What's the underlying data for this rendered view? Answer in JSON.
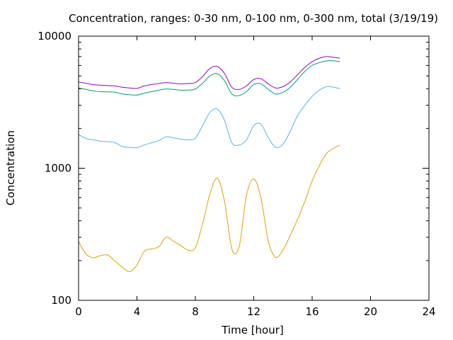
{
  "chart_data": {
    "type": "line",
    "title": "Concentration, ranges: 0-30 nm, 0-100 nm, 0-300 nm, total (3/19/19)",
    "xlabel": "Time [hour]",
    "ylabel": "Concentration",
    "xlim": [
      0,
      24
    ],
    "ylim": [
      100,
      10000
    ],
    "yscale": "log",
    "x_ticks": [
      "0",
      "4",
      "8",
      "12",
      "16",
      "20",
      "24"
    ],
    "y_ticks": [
      "100",
      "1000",
      "10000"
    ],
    "grid": false,
    "legend": "none",
    "series": [
      {
        "color": "#e69f00",
        "x": [
          0,
          0.5,
          1,
          1.5,
          2,
          2.5,
          3,
          3.5,
          4,
          4.5,
          5,
          5.5,
          6,
          6.5,
          7,
          7.5,
          8,
          8.5,
          9,
          9.5,
          10,
          10.5,
          11,
          11.5,
          12,
          12.5,
          13,
          13.5,
          14,
          14.5,
          15,
          15.5,
          16,
          16.5,
          17,
          17.5,
          17.9
        ],
        "y": [
          280,
          225,
          210,
          218,
          220,
          198,
          178,
          165,
          185,
          235,
          245,
          255,
          300,
          280,
          260,
          240,
          250,
          380,
          640,
          840,
          560,
          245,
          255,
          620,
          830,
          590,
          280,
          212,
          240,
          310,
          410,
          560,
          800,
          1050,
          1300,
          1420,
          1500
        ]
      },
      {
        "color": "#56b4e9",
        "x": [
          0,
          0.5,
          1,
          1.5,
          2,
          2.5,
          3,
          3.5,
          4,
          4.5,
          5,
          5.5,
          6,
          6.5,
          7,
          7.5,
          8,
          8.5,
          9,
          9.5,
          10,
          10.5,
          11,
          11.5,
          12,
          12.5,
          13,
          13.5,
          14,
          14.5,
          15,
          15.5,
          16,
          16.5,
          17,
          17.5,
          17.9
        ],
        "y": [
          1800,
          1680,
          1640,
          1600,
          1590,
          1560,
          1460,
          1440,
          1430,
          1500,
          1560,
          1620,
          1730,
          1700,
          1660,
          1640,
          1690,
          2100,
          2650,
          2800,
          2300,
          1560,
          1500,
          1640,
          2100,
          2150,
          1700,
          1440,
          1520,
          1900,
          2500,
          3000,
          3500,
          3900,
          4150,
          4100,
          4000
        ]
      },
      {
        "color": "#009e73",
        "x": [
          0,
          0.5,
          1,
          1.5,
          2,
          2.5,
          3,
          3.5,
          4,
          4.5,
          5,
          5.5,
          6,
          6.5,
          7,
          7.5,
          8,
          8.5,
          9,
          9.5,
          10,
          10.5,
          11,
          11.5,
          12,
          12.5,
          13,
          13.5,
          14,
          14.5,
          15,
          15.5,
          16,
          16.5,
          17,
          17.5,
          17.9
        ],
        "y": [
          4050,
          3950,
          3850,
          3800,
          3780,
          3760,
          3650,
          3600,
          3580,
          3700,
          3800,
          3900,
          3980,
          3950,
          3900,
          3900,
          3980,
          4400,
          5000,
          5200,
          4600,
          3650,
          3550,
          3800,
          4300,
          4350,
          3950,
          3650,
          3750,
          4100,
          4700,
          5400,
          6000,
          6300,
          6500,
          6500,
          6400
        ]
      },
      {
        "color": "#9400d3",
        "x": [
          0,
          0.5,
          1,
          1.5,
          2,
          2.5,
          3,
          3.5,
          4,
          4.5,
          5,
          5.5,
          6,
          6.5,
          7,
          7.5,
          8,
          8.5,
          9,
          9.5,
          10,
          10.5,
          11,
          11.5,
          12,
          12.5,
          13,
          13.5,
          14,
          14.5,
          15,
          15.5,
          16,
          16.5,
          17,
          17.5,
          17.9
        ],
        "y": [
          4500,
          4400,
          4300,
          4250,
          4220,
          4200,
          4100,
          4050,
          4020,
          4200,
          4300,
          4380,
          4450,
          4400,
          4350,
          4380,
          4450,
          4950,
          5700,
          5900,
          5200,
          4100,
          3950,
          4200,
          4700,
          4750,
          4350,
          4050,
          4150,
          4500,
          5100,
          5800,
          6400,
          6800,
          7000,
          6900,
          6800
        ]
      }
    ]
  }
}
